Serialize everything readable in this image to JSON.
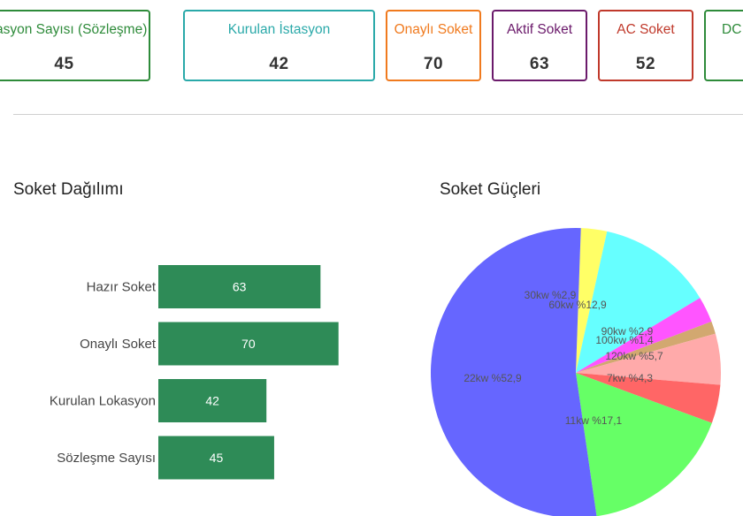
{
  "summary_cards": [
    {
      "label": "İstasyon Sayısı (Sözleşme)",
      "value": "45",
      "color": "#2e8b3a"
    },
    {
      "label": "Kurulan İstasyon",
      "value": "42",
      "color": "#2aa9a9"
    },
    {
      "label": "Onaylı Soket",
      "value": "70",
      "color": "#f07a1e"
    },
    {
      "label": "Aktif Soket",
      "value": "63",
      "color": "#6b1a6b"
    },
    {
      "label": "AC Soket",
      "value": "52",
      "color": "#c0392b"
    },
    {
      "label": "DC",
      "value": "",
      "color": "#2e8b3a"
    }
  ],
  "bar_section": {
    "title": "Soket Dağılımı"
  },
  "pie_section": {
    "title": "Soket Güçleri"
  },
  "chart_data": [
    {
      "type": "bar",
      "orientation": "horizontal",
      "categories": [
        "Hazır Soket",
        "Onaylı Soket",
        "Kurulan Lokasyon",
        "Sözleşme Sayısı"
      ],
      "values": [
        63,
        70,
        42,
        45
      ],
      "bar_color": "#2e8b57",
      "data_labels": true,
      "xlim": [
        0,
        100
      ]
    },
    {
      "type": "pie",
      "slices": [
        {
          "label": "30kw %2,9",
          "value": 2.9,
          "color": "#ffff66"
        },
        {
          "label": "60kw %12,9",
          "value": 12.9,
          "color": "#66ffff"
        },
        {
          "label": "90kw %2,9",
          "value": 2.9,
          "color": "#ff55ff"
        },
        {
          "label": "100kw %1,4",
          "value": 1.4,
          "color": "#d2a870"
        },
        {
          "label": "120kw %5,7",
          "value": 5.7,
          "color": "#ffaaaa"
        },
        {
          "label": "7kw %4,3",
          "value": 4.3,
          "color": "#ff6666"
        },
        {
          "label": "11kw %17,1",
          "value": 17.1,
          "color": "#66ff66"
        },
        {
          "label": "22kw %52,9",
          "value": 52.9,
          "color": "#6666ff"
        }
      ]
    }
  ]
}
